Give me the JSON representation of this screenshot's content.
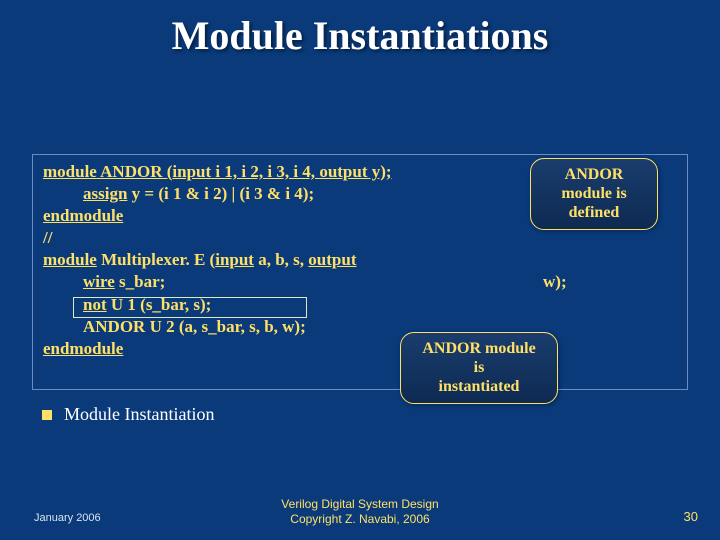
{
  "title": "Module Instantiations",
  "code": {
    "l1_a": "module",
    "l1_b": " ANDOR (",
    "l1_c": "input",
    "l1_d": " i 1, i 2, i 3, i 4, ",
    "l1_e": "output",
    "l1_f": " y);",
    "l2_a": "assign",
    "l2_b": " y = (i 1 & i 2) | (i 3 & i 4);",
    "l3_a": "endmodule",
    "l4": "//",
    "l5_a": "module",
    "l5_b": " Multiplexer. E (",
    "l5_c": "input",
    "l5_d": " a, b, s, ",
    "l5_e": "output",
    "l5_ext": "w);",
    "l6_a": "wire",
    "l6_b": " s_bar;",
    "l7_a": "not",
    "l7_b": " U 1 (s_bar, s);",
    "l8": "ANDOR U 2 (a, s_bar, s, b, w);",
    "l9_a": "endmodule"
  },
  "callouts": {
    "c1_l1": "ANDOR",
    "c1_l2": "module is",
    "c1_l3": "defined",
    "c2_l1": "ANDOR module",
    "c2_l2": "is",
    "c2_l3": "instantiated"
  },
  "bullet": "Module Instantiation",
  "footer": {
    "date": "January 2006",
    "center_l1": "Verilog Digital System Design",
    "center_l2": "Copyright Z. Navabi, 2006",
    "page": "30"
  },
  "colors": {
    "background": "#0a3a7a",
    "accent": "#ffe066",
    "title": "#ffffff"
  }
}
